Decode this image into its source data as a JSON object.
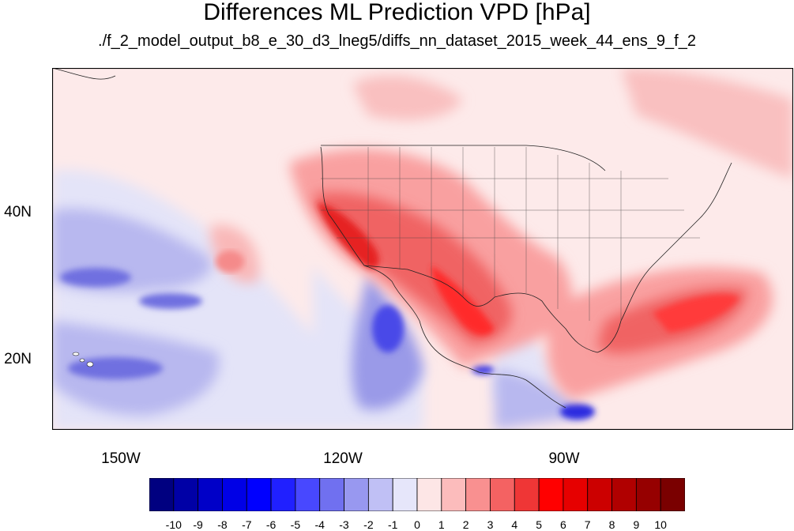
{
  "header": {
    "title": "Differences ML Prediction VPD [hPa]",
    "subtitle": "./f_2_model_output_b8_e_30_d3_lneg5/diffs_nn_dataset_2015_week_44_ens_9_f_2"
  },
  "axes": {
    "lon_labels": [
      "150W",
      "120W",
      "90W"
    ],
    "lat_labels": [
      "40N",
      "20N"
    ]
  },
  "colorbar": {
    "labels": [
      "-10",
      "-9",
      "-8",
      "-7",
      "-6",
      "-5",
      "-4",
      "-3",
      "-2",
      "-1",
      "0",
      "1",
      "2",
      "3",
      "4",
      "5",
      "6",
      "7",
      "8",
      "9",
      "10"
    ],
    "colors": [
      "#000080",
      "#0000a6",
      "#0000c8",
      "#0000e6",
      "#0000ff",
      "#2020ff",
      "#4848ff",
      "#7070f0",
      "#9898f0",
      "#c0c0f5",
      "#e6e6fa",
      "#fde6e6",
      "#fcbcbc",
      "#f99090",
      "#f46262",
      "#ef3636",
      "#ff0000",
      "#e60000",
      "#cc0000",
      "#b00000",
      "#960000",
      "#7a0000"
    ]
  },
  "chart_data": {
    "type": "heatmap",
    "title": "Differences ML Prediction VPD [hPa]",
    "subtitle": "./f_2_model_output_b8_e_30_d3_lneg5/diffs_nn_dataset_2015_week_44_ens_9_f_2",
    "lon_range": [
      -160,
      -62
    ],
    "lat_range": [
      10,
      60
    ],
    "x_ticks": [
      "150W",
      "120W",
      "90W"
    ],
    "y_ticks": [
      "40N",
      "20N"
    ],
    "color_range": [
      -10,
      10
    ],
    "colorbar_ticks": [
      -10,
      -9,
      -8,
      -7,
      -6,
      -5,
      -4,
      -3,
      -2,
      -1,
      0,
      1,
      2,
      3,
      4,
      5,
      6,
      7,
      8,
      9,
      10
    ],
    "regions": [
      {
        "lon": -118,
        "lat": 35,
        "value": 6
      },
      {
        "lon": -110,
        "lat": 30,
        "value": 5
      },
      {
        "lon": -100,
        "lat": 26,
        "value": 4
      },
      {
        "lon": -75,
        "lat": 30,
        "value": 3
      },
      {
        "lon": -112,
        "lat": 22,
        "value": -4
      },
      {
        "lon": -145,
        "lat": 30,
        "value": -3
      },
      {
        "lon": -152,
        "lat": 20,
        "value": -3
      },
      {
        "lon": -92,
        "lat": 16,
        "value": -3
      },
      {
        "lon": -88,
        "lat": 12,
        "value": -4
      },
      {
        "lon": -135,
        "lat": 35,
        "value": 2
      },
      {
        "lon": -85,
        "lat": 40,
        "value": 1
      }
    ]
  }
}
